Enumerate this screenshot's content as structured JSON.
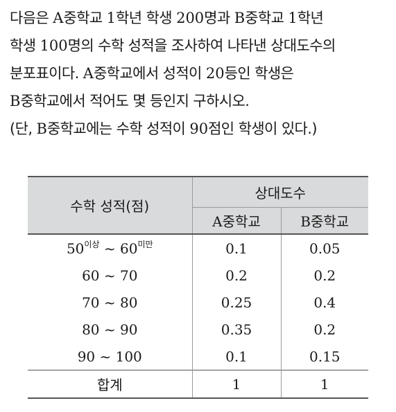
{
  "problem": {
    "line1_a": "다음은 ",
    "line1_b": "A",
    "line1_c": "중학교 ",
    "line1_d": "1",
    "line1_e": "학년 학생 ",
    "line1_f": "200",
    "line1_g": "명과 ",
    "line1_h": "B",
    "line1_i": "중학교 ",
    "line1_j": "1",
    "line1_k": "학년",
    "line2_a": "학생 ",
    "line2_b": "100",
    "line2_c": "명의 수학 성적을 조사하여 나타낸 상대도수의",
    "line3_a": "분포표이다. ",
    "line3_b": "A",
    "line3_c": "중학교에서 성적이 ",
    "line3_d": "20",
    "line3_e": "등인 학생은",
    "line4_a": "B",
    "line4_b": "중학교에서 적어도 몇 등인지 구하시오.",
    "line5_a": "(단, ",
    "line5_b": "B",
    "line5_c": "중학교에는 수학 성적이 ",
    "line5_d": "90",
    "line5_e": "점인 학생이 있다.)"
  },
  "table": {
    "score_header": "수학 성적(점)",
    "relfreq_header": "상대도수",
    "colA_letter": "A",
    "colA_word": "중학교",
    "colB_letter": "B",
    "colB_word": "중학교",
    "first_low": "50",
    "first_low_sup": "이상",
    "first_tilde": " ~ ",
    "first_high": "60",
    "first_high_sup": "미만",
    "rows": [
      {
        "range": "",
        "a": "0.1",
        "b": "0.05"
      },
      {
        "range": "60 ~ 70",
        "a": "0.2",
        "b": "0.2"
      },
      {
        "range": "70 ~ 80",
        "a": "0.25",
        "b": "0.4"
      },
      {
        "range": "80 ~ 90",
        "a": "0.35",
        "b": "0.2"
      },
      {
        "range": "90 ~ 100",
        "a": "0.1",
        "b": "0.15"
      }
    ],
    "total_label": "합계",
    "total_a": "1",
    "total_b": "1"
  }
}
